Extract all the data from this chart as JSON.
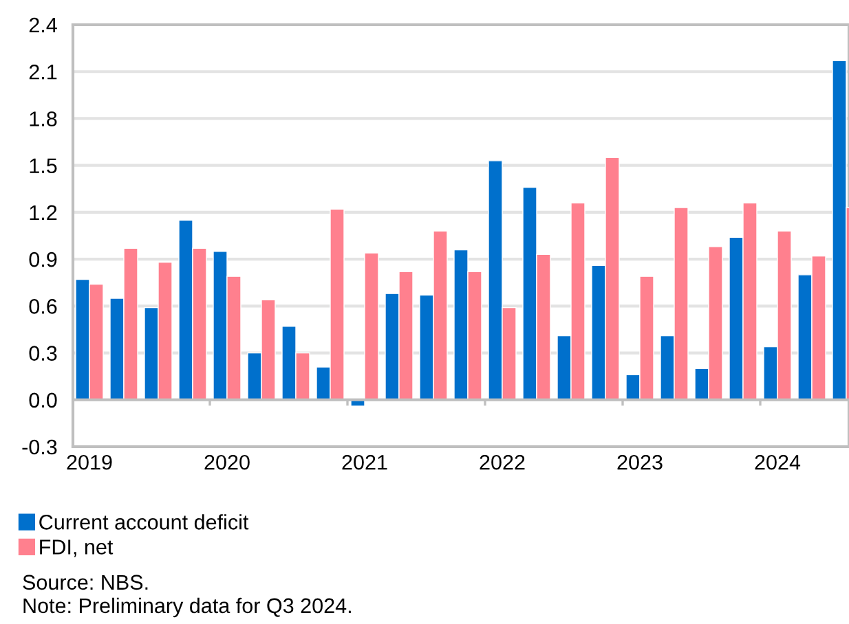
{
  "chart_data": {
    "type": "bar",
    "categories": [
      "2019",
      null,
      null,
      null,
      "2020",
      null,
      null,
      null,
      "2021",
      null,
      null,
      null,
      "2022",
      null,
      null,
      null,
      "2023",
      null,
      null,
      null,
      "2024",
      null,
      null
    ],
    "series": [
      {
        "name": "Current account deficit",
        "color": "#0070cc",
        "values": [
          0.77,
          0.65,
          0.59,
          1.15,
          0.95,
          0.3,
          0.47,
          0.21,
          -0.04,
          0.68,
          0.67,
          0.96,
          1.53,
          1.36,
          0.41,
          0.86,
          0.16,
          0.41,
          0.2,
          1.04,
          0.34,
          0.8,
          2.17
        ]
      },
      {
        "name": "FDI, net",
        "color": "#ff808e",
        "values": [
          0.74,
          0.97,
          0.88,
          0.97,
          0.79,
          0.64,
          0.3,
          1.22,
          0.94,
          0.82,
          1.08,
          0.82,
          0.59,
          0.93,
          1.26,
          1.55,
          0.79,
          1.23,
          0.98,
          1.26,
          1.08,
          0.92,
          1.23
        ]
      }
    ],
    "ylim": [
      -0.3,
      2.4
    ],
    "yticks": [
      {
        "value": -0.3,
        "label": "-0.3"
      },
      {
        "value": 0,
        "label": "0.0"
      },
      0.3,
      0.6,
      0.9,
      1.2,
      1.5,
      1.8,
      2.1,
      2.4
    ],
    "grid": "y",
    "legend": "bottom",
    "annotations": [
      "Source: NBS.",
      "Note: Preliminary data for Q3 2024."
    ]
  }
}
